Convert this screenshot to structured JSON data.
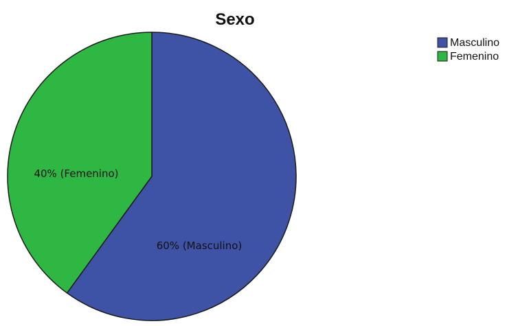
{
  "chart_data": {
    "type": "pie",
    "title": "Sexo",
    "categories": [
      "Masculino",
      "Femenino"
    ],
    "values": [
      60,
      40
    ],
    "unit": "%",
    "slice_labels": [
      "60% (Masculino)",
      "40% (Femenino)"
    ],
    "colors": [
      "#3f53a6",
      "#2eb742"
    ],
    "legend": {
      "placement": "top-right",
      "entries": [
        "Masculino",
        "Femenino"
      ]
    },
    "start_angle_deg": 0,
    "direction": "clockwise"
  }
}
